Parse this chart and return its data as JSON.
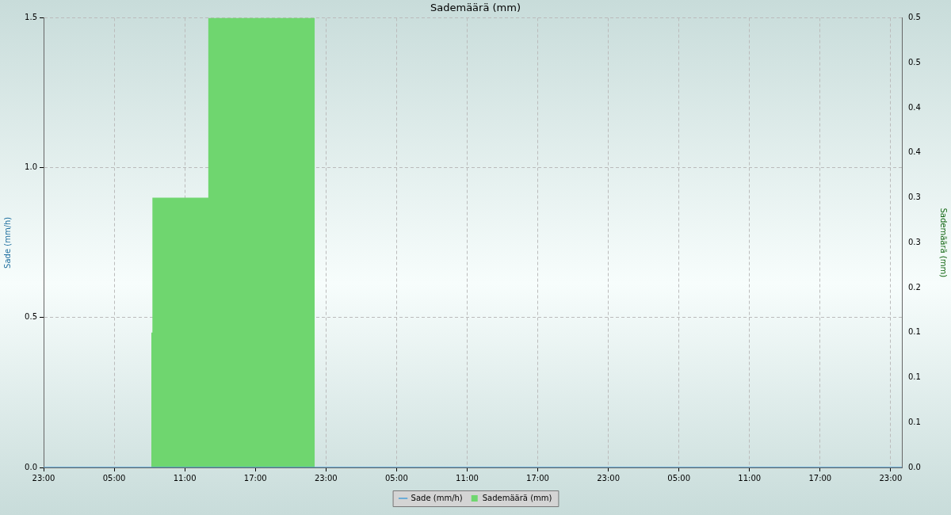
{
  "chart_data": {
    "type": "step",
    "title": "Sademäärä (mm)",
    "ylabel": "Sade (mm/h)",
    "y2label": "Sademäärä (mm)",
    "xlim": [
      "2000-01-01T23:00",
      "2000-01-04T23:57"
    ],
    "xticks": [
      {
        "value": "2000-01-01T23:00",
        "label": "23:00"
      },
      {
        "value": "2000-01-02T05:00",
        "label": "05:00"
      },
      {
        "value": "2000-01-02T11:00",
        "label": "11:00"
      },
      {
        "value": "2000-01-02T17:00",
        "label": "17:00"
      },
      {
        "value": "2000-01-02T23:00",
        "label": "23:00"
      },
      {
        "value": "2000-01-03T05:00",
        "label": "05:00"
      },
      {
        "value": "2000-01-03T11:00",
        "label": "11:00"
      },
      {
        "value": "2000-01-03T17:00",
        "label": "17:00"
      },
      {
        "value": "2000-01-03T23:00",
        "label": "23:00"
      },
      {
        "value": "2000-01-04T05:00",
        "label": "05:00"
      },
      {
        "value": "2000-01-04T11:00",
        "label": "11:00"
      },
      {
        "value": "2000-01-04T17:00",
        "label": "17:00"
      },
      {
        "value": "2000-01-04T23:00",
        "label": "23:00"
      }
    ],
    "ylim": [
      0,
      1.5
    ],
    "yticks": [
      {
        "value": 0,
        "label": "0.0"
      },
      {
        "value": 0.5,
        "label": "0.5"
      },
      {
        "value": 1,
        "label": "1.0"
      },
      {
        "value": 1.5,
        "label": "1.5"
      }
    ],
    "y2lim": [
      0,
      0.5
    ],
    "y2ticks": [
      {
        "value": 0,
        "label": "0.0"
      },
      {
        "value": 0.05,
        "label": "0.1"
      },
      {
        "value": 0.1,
        "label": "0.1"
      },
      {
        "value": 0.15,
        "label": "0.1"
      },
      {
        "value": 0.2,
        "label": "0.2"
      },
      {
        "value": 0.25,
        "label": "0.3"
      },
      {
        "value": 0.3,
        "label": "0.3"
      },
      {
        "value": 0.35,
        "label": "0.4"
      },
      {
        "value": 0.4,
        "label": "0.4"
      },
      {
        "value": 0.45,
        "label": "0.5"
      },
      {
        "value": 0.5,
        "label": "0.5"
      }
    ],
    "grid": true,
    "legend": "bottom",
    "series": [
      {
        "name": "Sade (mm/h)",
        "color": "#4a9fd8",
        "x": [
          "2000-01-01T23:00",
          "2000-01-04T23:57"
        ],
        "values": [
          0,
          0
        ]
      },
      {
        "name": "Sademäärä (mm)",
        "type": "area",
        "axis": "y2",
        "color": "#6fd66f",
        "x": [
          "2000-01-02T08:09",
          "2000-01-02T08:15",
          "2000-01-02T13:00",
          "2000-01-02T22:03"
        ],
        "values": [
          0.15,
          0.3,
          0.5,
          0
        ]
      }
    ]
  }
}
